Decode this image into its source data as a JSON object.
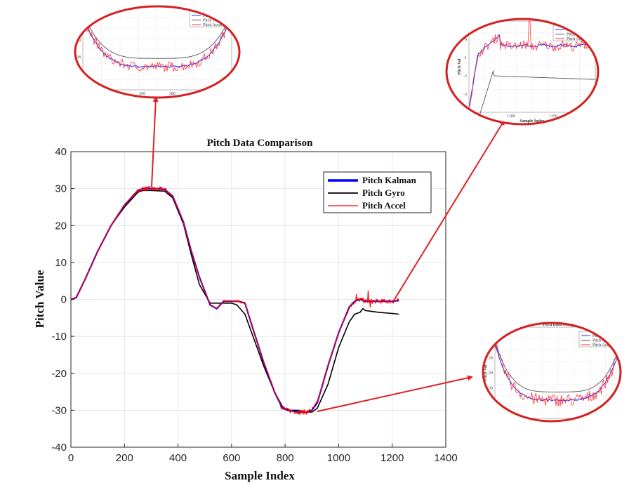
{
  "chart_data": {
    "type": "line",
    "title": "Pitch Data Comparison",
    "xlabel": "Sample Index",
    "ylabel": "Pitch Value",
    "xlim": [
      0,
      1400
    ],
    "ylim": [
      -40,
      40
    ],
    "xticks": [
      0,
      200,
      400,
      600,
      800,
      1000,
      1200,
      1400
    ],
    "yticks": [
      -40,
      -30,
      -20,
      -10,
      0,
      10,
      20,
      30,
      40
    ],
    "grid": true,
    "legend_position": "upper-right",
    "series": [
      {
        "name": "Pitch Kalman",
        "color": "#0000ff",
        "x": [
          0,
          20,
          50,
          100,
          150,
          200,
          250,
          270,
          300,
          350,
          380,
          420,
          450,
          480,
          520,
          545,
          570,
          600,
          625,
          650,
          680,
          720,
          760,
          790,
          810,
          850,
          880,
          900,
          920,
          960,
          1000,
          1040,
          1060,
          1080,
          1100,
          1150,
          1200,
          1225
        ],
        "y": [
          0,
          0.5,
          5,
          13,
          20,
          25.5,
          29.5,
          30,
          30,
          29.8,
          28,
          21,
          13,
          6,
          -1.5,
          -2.5,
          -0.5,
          -0.5,
          -0.5,
          -1,
          -8,
          -17,
          -25,
          -29.5,
          -30,
          -30.5,
          -30.5,
          -30,
          -28,
          -18,
          -9,
          -2,
          -0.5,
          0,
          -0.5,
          -0.5,
          -0.5,
          -0.3
        ]
      },
      {
        "name": "Pitch Gyro",
        "color": "#000000",
        "x": [
          0,
          20,
          50,
          100,
          150,
          200,
          250,
          270,
          300,
          350,
          380,
          420,
          450,
          480,
          520,
          545,
          570,
          600,
          620,
          650,
          680,
          720,
          760,
          790,
          810,
          850,
          880,
          900,
          920,
          960,
          1000,
          1040,
          1060,
          1080,
          1090,
          1100,
          1150,
          1200,
          1225
        ],
        "y": [
          0,
          0.5,
          5,
          13,
          20,
          25,
          29,
          29.5,
          29.5,
          29.3,
          27.5,
          20.5,
          12,
          4,
          -1,
          -1,
          -1,
          -1,
          -1.5,
          -4,
          -10,
          -18,
          -25,
          -29,
          -30,
          -30,
          -30.5,
          -30.5,
          -29.5,
          -23,
          -13,
          -6,
          -4,
          -3.5,
          -2.5,
          -3,
          -3.5,
          -3.8,
          -4
        ]
      },
      {
        "name": "Pitch Accel",
        "color": "#ff0000",
        "x": [
          0,
          20,
          50,
          100,
          150,
          200,
          250,
          270,
          300,
          350,
          380,
          420,
          450,
          480,
          520,
          545,
          570,
          600,
          625,
          650,
          680,
          720,
          760,
          790,
          810,
          850,
          880,
          900,
          920,
          960,
          1000,
          1040,
          1060,
          1080,
          1100,
          1150,
          1200,
          1225
        ],
        "y": [
          0,
          0.5,
          5,
          13,
          20,
          25.5,
          29.5,
          30,
          30,
          29.8,
          28,
          21,
          13,
          6,
          -1.5,
          -2.5,
          -0.5,
          -0.5,
          -0.5,
          -1,
          -8,
          -17,
          -25,
          -29.5,
          -30,
          -30.5,
          -30.5,
          -30,
          -28,
          -18,
          -9,
          -2,
          -0.5,
          0,
          -0.5,
          -0.5,
          -0.5,
          -0.3
        ]
      }
    ],
    "zoom_insets": [
      {
        "target": "peak",
        "title": "Pitch Data Comp",
        "xlabel": "Sample Index",
        "ylabel": "Pitch Val",
        "xticks": [
          "280",
          "290",
          "300",
          "320"
        ],
        "yticks": [
          "30",
          "29",
          "28",
          "27"
        ],
        "legend": [
          "Pitch Kalman",
          "Pitch Gyro",
          "Pitch Accel"
        ]
      },
      {
        "target": "tail",
        "title": "Pitch Data Comp",
        "xlabel": "Sample Index",
        "ylabel": "Pitch Val",
        "xticks": [
          "1100",
          "1150"
        ],
        "yticks": [
          "0",
          "-1",
          "-2",
          "-3"
        ],
        "legend": [
          "Pitch Kalman",
          "Pitch Gyro",
          "Pitch Accel"
        ]
      },
      {
        "target": "trough",
        "title": "Pitch Data Comp",
        "xlabel": "Sample Index",
        "ylabel": "Pitch Val",
        "xticks": [
          "800",
          "820",
          "840",
          "860",
          "880"
        ],
        "yticks": [
          "-27",
          "-28",
          "-29",
          "-30",
          "-31"
        ],
        "legend": [
          "Pitch Kalman",
          "Pitch Gyro",
          "Pitch Accel"
        ]
      }
    ]
  }
}
